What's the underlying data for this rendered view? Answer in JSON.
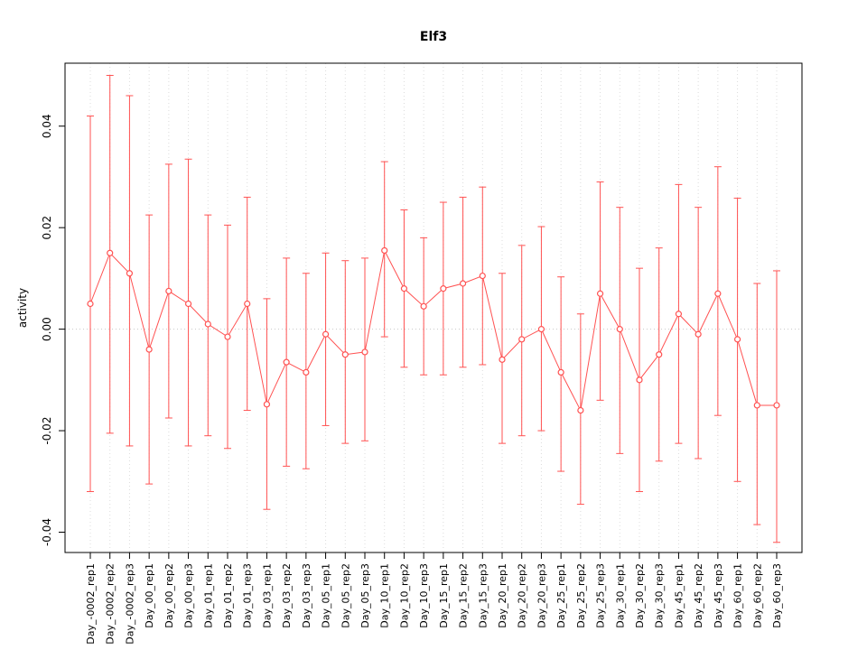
{
  "page": {
    "background": "#ffffff"
  },
  "chart_data": {
    "type": "line",
    "title": "Elf3",
    "xlabel": "",
    "ylabel": "activity",
    "ylim": [
      -0.044,
      0.0524
    ],
    "yticks": [
      -0.04,
      -0.02,
      0.0,
      0.02,
      0.04
    ],
    "ytick_labels": [
      "-0.04",
      "-0.02",
      "0.00",
      "0.02",
      "0.04"
    ],
    "grid": "vertical dotted gridlines at each category; dotted horizontal reference line at y=0",
    "legend_position": "none",
    "series_color": "#FF5252",
    "gridline_color": "#DCDCDC",
    "zero_line_color": "#C8C8C8",
    "axis_color": "#000000",
    "marker": "open-circle",
    "error_bars": true,
    "categories": [
      "Day_-0002_rep1",
      "Day_-0002_rep2",
      "Day_-0002_rep3",
      "Day_00_rep1",
      "Day_00_rep2",
      "Day_00_rep3",
      "Day_01_rep1",
      "Day_01_rep2",
      "Day_01_rep3",
      "Day_03_rep1",
      "Day_03_rep2",
      "Day_03_rep3",
      "Day_05_rep1",
      "Day_05_rep2",
      "Day_05_rep3",
      "Day_10_rep1",
      "Day_10_rep2",
      "Day_10_rep3",
      "Day_15_rep1",
      "Day_15_rep2",
      "Day_15_rep3",
      "Day_20_rep1",
      "Day_20_rep2",
      "Day_20_rep3",
      "Day_25_rep1",
      "Day_25_rep2",
      "Day_25_rep3",
      "Day_30_rep1",
      "Day_30_rep2",
      "Day_30_rep3",
      "Day_45_rep1",
      "Day_45_rep2",
      "Day_45_rep3",
      "Day_60_rep1",
      "Day_60_rep2",
      "Day_60_rep3"
    ],
    "values": [
      0.005,
      0.015,
      0.011,
      -0.004,
      0.0075,
      0.005,
      0.001,
      -0.0015,
      0.005,
      -0.0148,
      -0.0065,
      -0.0085,
      -0.001,
      -0.005,
      -0.0045,
      0.0155,
      0.008,
      0.0045,
      0.008,
      0.009,
      0.0105,
      -0.006,
      -0.002,
      0.0,
      -0.0085,
      -0.016,
      0.007,
      0.0,
      -0.01,
      -0.005,
      0.003,
      -0.001,
      0.007,
      -0.002,
      -0.015,
      -0.015
    ],
    "error_upper": [
      0.042,
      0.05,
      0.046,
      0.0225,
      0.0325,
      0.0335,
      0.0225,
      0.0205,
      0.026,
      0.006,
      0.014,
      0.011,
      0.015,
      0.0135,
      0.014,
      0.033,
      0.0235,
      0.018,
      0.025,
      0.026,
      0.028,
      0.011,
      0.0165,
      0.0202,
      0.0103,
      0.003,
      0.029,
      0.024,
      0.012,
      0.016,
      0.0285,
      0.024,
      0.032,
      0.0258,
      0.009,
      0.0115
    ],
    "error_lower": [
      -0.032,
      -0.0205,
      -0.023,
      -0.0305,
      -0.0175,
      -0.023,
      -0.021,
      -0.0235,
      -0.016,
      -0.0355,
      -0.027,
      -0.0275,
      -0.019,
      -0.0225,
      -0.022,
      -0.0015,
      -0.0075,
      -0.009,
      -0.009,
      -0.0075,
      -0.007,
      -0.0225,
      -0.021,
      -0.02,
      -0.028,
      -0.0345,
      -0.014,
      -0.0245,
      -0.032,
      -0.026,
      -0.0225,
      -0.0255,
      -0.017,
      -0.03,
      -0.0385,
      -0.042
    ]
  }
}
